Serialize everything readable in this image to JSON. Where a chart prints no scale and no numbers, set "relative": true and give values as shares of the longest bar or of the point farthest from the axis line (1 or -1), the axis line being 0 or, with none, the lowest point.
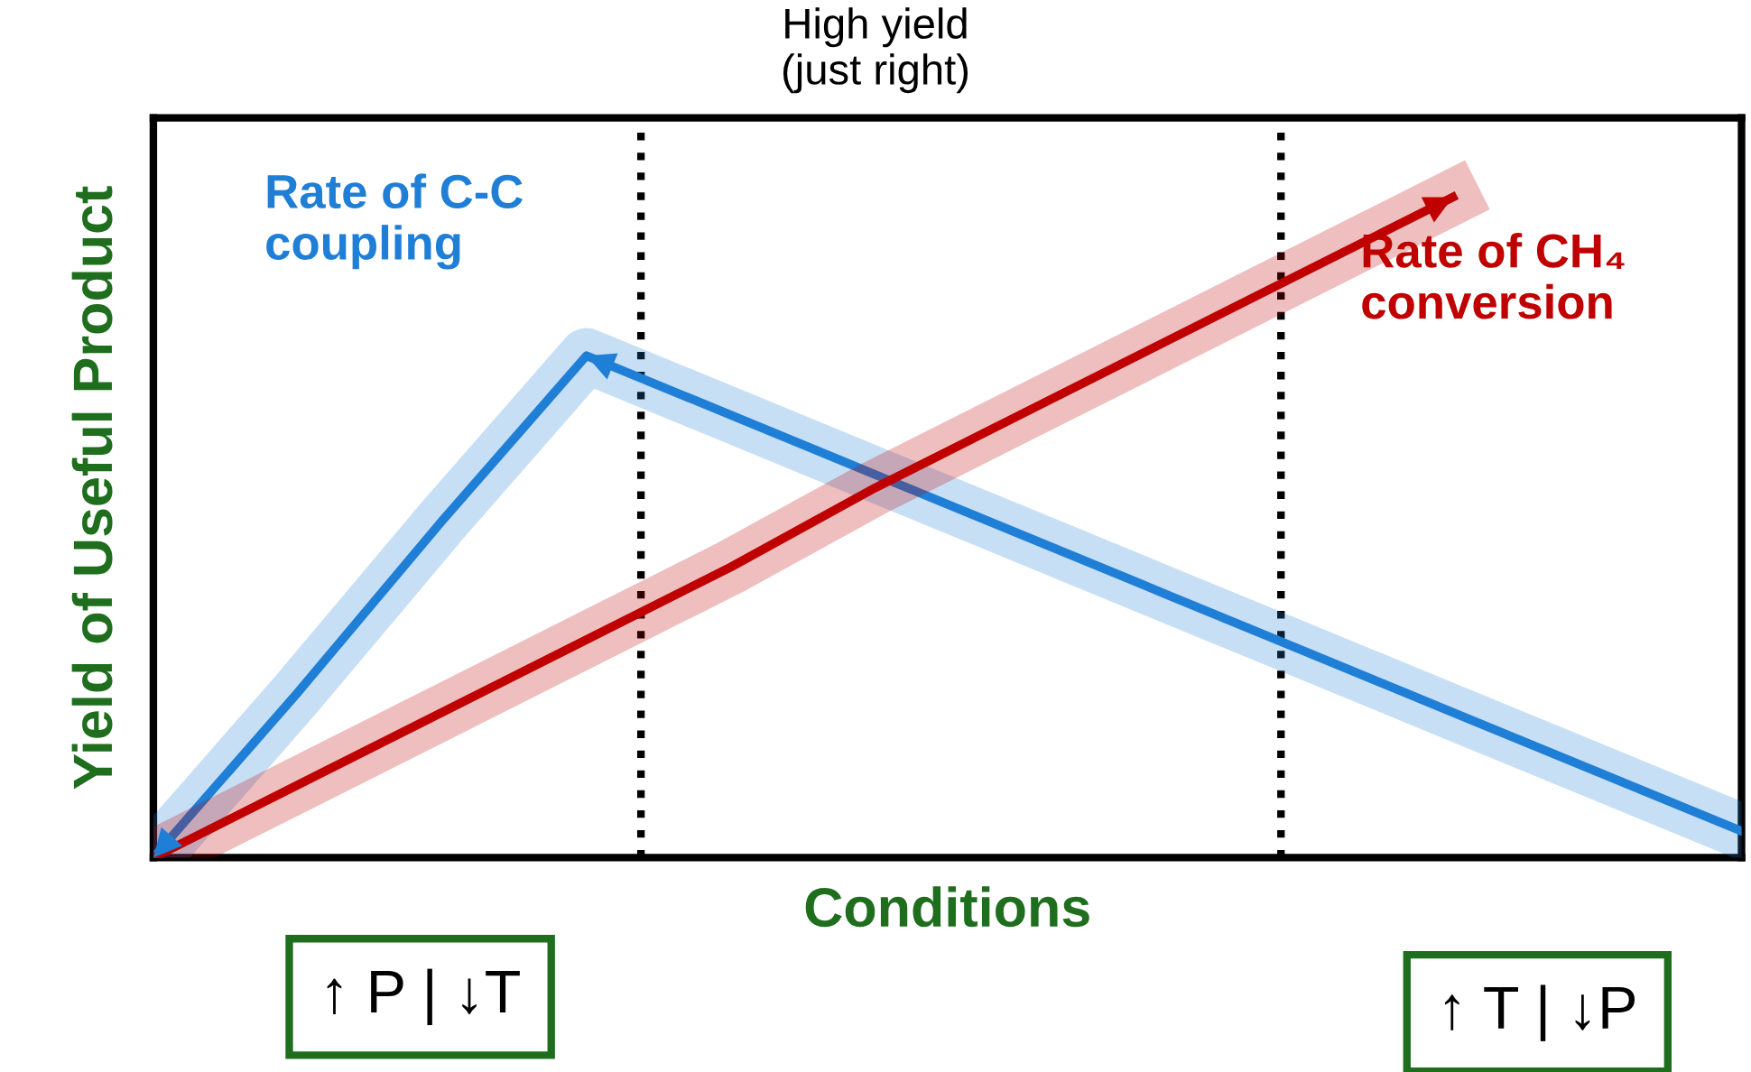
{
  "chart_data": {
    "type": "line",
    "relative": true,
    "xlabel": "Conditions",
    "ylabel": "Yield of Useful Product",
    "categories": [
      null,
      null,
      null,
      null,
      null,
      null,
      null,
      null,
      null,
      null,
      null,
      null
    ],
    "grid": false,
    "marker": "none",
    "line_style": "solid",
    "series": [
      {
        "name": "Rate of C-C\ncoupling",
        "color": "#1f7fd6",
        "values": [
          0.0,
          0.25,
          0.51,
          0.76,
          0.67,
          0.58,
          0.49,
          0.4,
          0.31,
          0.22,
          0.13,
          0.04
        ]
      },
      {
        "name": "Rate of CH₄\nconversion",
        "color": "#c00000",
        "values": [
          0.0,
          0.11,
          0.22,
          0.33,
          0.44,
          0.56,
          0.67,
          0.78,
          0.89,
          1.0,
          null,
          null
        ]
      }
    ],
    "annotations": [
      "High yield\n(just right)",
      "↑ P | ↓T",
      "↑ T | ↓P"
    ]
  }
}
